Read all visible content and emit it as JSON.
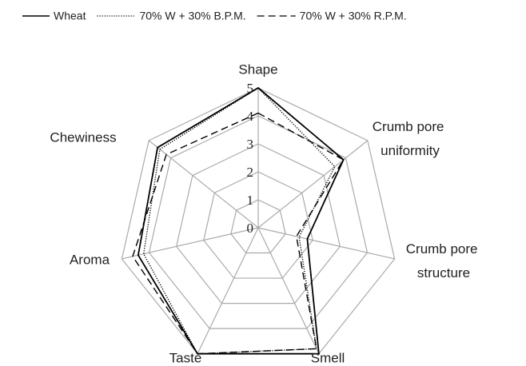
{
  "chart_data": {
    "type": "radar",
    "categories": [
      "Shape",
      "Crumb pore uniformity",
      "Crumb pore structure",
      "Smell",
      "Taste",
      "Aroma",
      "Chewiness"
    ],
    "series": [
      {
        "name": "Wheat",
        "color": "#000000",
        "line_style": "solid",
        "values": [
          5,
          3.9,
          1.8,
          5,
          5,
          4.4,
          4.6
        ]
      },
      {
        "name": "70% W + 30% B.P.M.",
        "color": "#000000",
        "line_style": "dotted",
        "values": [
          5,
          3.5,
          1.5,
          4.8,
          5,
          4.2,
          4.5
        ]
      },
      {
        "name": "70% W + 30% R.P.M.",
        "color": "#000000",
        "line_style": "dashed",
        "values": [
          4.1,
          3.9,
          1.4,
          4.8,
          5,
          4.6,
          4.2
        ]
      }
    ],
    "ylim": [
      0,
      5
    ],
    "yticks": [
      0,
      1,
      2,
      3,
      4,
      5
    ],
    "grid": true,
    "legend": "top"
  }
}
